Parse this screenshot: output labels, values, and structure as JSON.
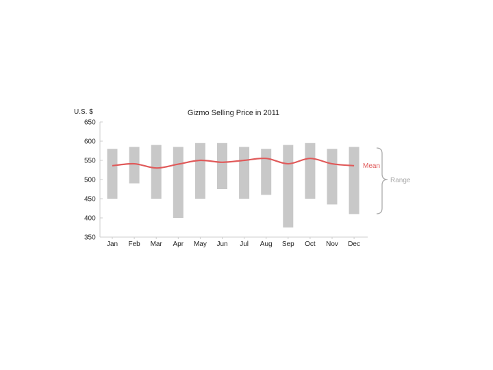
{
  "chart_data": {
    "type": "bar",
    "title": "Gizmo Selling Price in 2011",
    "ylabel": "U.S. $",
    "xlabel": "",
    "ylim": [
      350,
      650
    ],
    "yticks": [
      350,
      400,
      450,
      500,
      550,
      600,
      650
    ],
    "categories": [
      "Jan",
      "Feb",
      "Mar",
      "Apr",
      "May",
      "Jun",
      "Jul",
      "Aug",
      "Sep",
      "Oct",
      "Nov",
      "Dec"
    ],
    "range_low": [
      450,
      490,
      450,
      400,
      450,
      475,
      450,
      460,
      375,
      450,
      435,
      410
    ],
    "range_high": [
      580,
      585,
      590,
      585,
      595,
      595,
      585,
      580,
      590,
      595,
      580,
      585
    ],
    "mean": [
      536,
      541,
      530,
      540,
      550,
      545,
      550,
      555,
      541,
      555,
      541,
      536
    ],
    "annotations": {
      "mean": "Mean",
      "range": "Range"
    },
    "grid": false,
    "colors": {
      "range": "#c8c8c8",
      "mean": "#e05a5a",
      "axis": "#cccccc",
      "range_label": "#aaaaaa",
      "text": "#222222"
    }
  }
}
